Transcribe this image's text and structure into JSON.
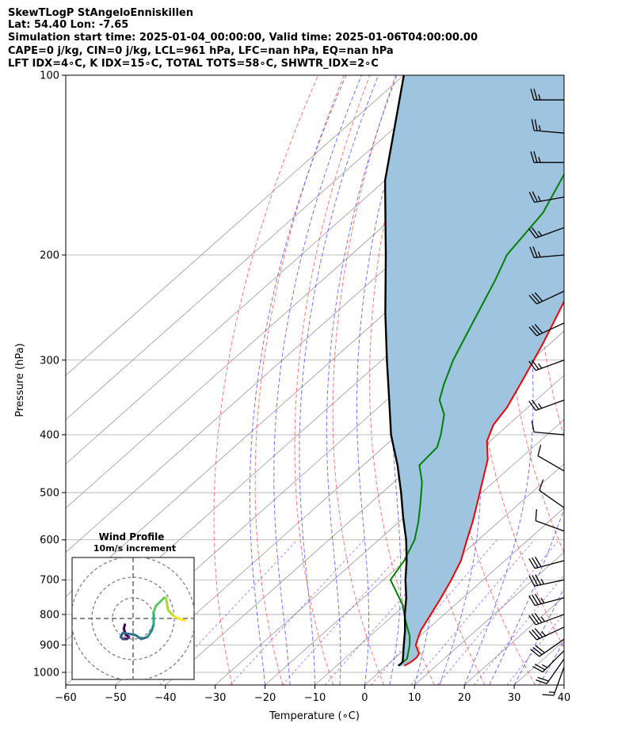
{
  "header": {
    "line1": "SkewTLogP StAngeloEnniskillen",
    "line2": "Lat: 54.40   Lon: -7.65",
    "line3": "Simulation start time: 2025-01-04_00:00:00, Valid time: 2025-01-06T04:00:00.00",
    "line4": "CAPE=0 j/kg, CIN=0 j/kg, LCL=961 hPa, LFC=nan hPa, EQ=nan hPa",
    "line5": "LFT IDX=4∘C, K IDX=15∘C, TOTAL TOTS=58∘C, SHWTR_IDX=2∘C"
  },
  "colors": {
    "temperature": "#ee0000",
    "dewpoint": "#008000",
    "parcel": "#000000",
    "cape_fill": "#9ec4df",
    "dry_adiabat": "#ff5555",
    "moist_adiabat": "#4444ff",
    "mixing_ratio": "#8a2be2",
    "isotherm": "#999999"
  },
  "chart_data": {
    "type": "line",
    "xlabel": "Temperature (∘C)",
    "ylabel": "Pressure (hPa)",
    "xlim": [
      -60,
      40
    ],
    "ylim": [
      1050,
      100
    ],
    "x_ticks": [
      -60,
      -50,
      -40,
      -30,
      -20,
      -10,
      0,
      10,
      20,
      30,
      40
    ],
    "x_tick_labels": [
      "−60",
      "−50",
      "−40",
      "−30",
      "−20",
      "−10",
      "0",
      "10",
      "20",
      "30",
      "40"
    ],
    "y_ticks": [
      1000,
      900,
      800,
      700,
      600,
      500,
      400,
      300,
      200,
      100
    ],
    "y_tick_labels": [
      "1000",
      "900",
      "800",
      "700",
      "600",
      "500",
      "400",
      "300",
      "200",
      "100"
    ],
    "skew_deg_per_decade": 135,
    "series": [
      {
        "name": "Temperature",
        "pressure": [
          975,
          960,
          945,
          930,
          900,
          870,
          850,
          800,
          750,
          700,
          650,
          600,
          560,
          520,
          480,
          440,
          410,
          385,
          360,
          320,
          280,
          240,
          200,
          180,
          160,
          140,
          120,
          100
        ],
        "temp": [
          3.6,
          4.1,
          4.2,
          3.8,
          1.2,
          -0.2,
          -1.1,
          -2.7,
          -4.4,
          -6.4,
          -8.8,
          -12.3,
          -15.2,
          -18.6,
          -22.3,
          -26.3,
          -30.6,
          -33.0,
          -34.2,
          -37.6,
          -41.6,
          -46.6,
          -53.6,
          -57.8,
          -62.0,
          -66.2,
          -69.4,
          -72.7
        ]
      },
      {
        "name": "Dewpoint",
        "pressure": [
          975,
          950,
          900,
          870,
          820,
          770,
          700,
          650,
          600,
          560,
          520,
          480,
          450,
          420,
          400,
          370,
          350,
          330,
          300,
          260,
          220,
          200,
          170,
          140,
          100
        ],
        "dewpt": [
          2.3,
          2.6,
          0.0,
          -2.0,
          -6.3,
          -10.6,
          -18.6,
          -20.2,
          -22.8,
          -26.1,
          -30.0,
          -34.4,
          -38.7,
          -39.2,
          -41.3,
          -45.2,
          -49.4,
          -52.0,
          -55.7,
          -60.2,
          -65.4,
          -68.7,
          -71.0,
          -76.8,
          -84.1
        ]
      },
      {
        "name": "Parcel",
        "pressure": [
          975,
          961,
          940,
          900,
          850,
          800,
          750,
          700,
          650,
          600,
          550,
          500,
          450,
          400,
          350,
          300,
          250,
          200,
          150,
          120,
          100
        ],
        "temp": [
          2.5,
          2.4,
          1.2,
          -1.2,
          -4.3,
          -7.9,
          -11.4,
          -15.6,
          -19.7,
          -24.5,
          -30.2,
          -36.2,
          -43.1,
          -51.3,
          -59.5,
          -69.0,
          -80.0,
          -93.0,
          -110.0,
          -121.0,
          -130.0
        ]
      }
    ],
    "wind_barbs": [
      {
        "p": 980,
        "speed_kt": 15,
        "dir_deg": 200
      },
      {
        "p": 950,
        "speed_kt": 20,
        "dir_deg": 215
      },
      {
        "p": 920,
        "speed_kt": 25,
        "dir_deg": 225
      },
      {
        "p": 880,
        "speed_kt": 30,
        "dir_deg": 235
      },
      {
        "p": 840,
        "speed_kt": 35,
        "dir_deg": 245
      },
      {
        "p": 800,
        "speed_kt": 35,
        "dir_deg": 250
      },
      {
        "p": 750,
        "speed_kt": 35,
        "dir_deg": 255
      },
      {
        "p": 700,
        "speed_kt": 35,
        "dir_deg": 258
      },
      {
        "p": 650,
        "speed_kt": 30,
        "dir_deg": 255
      },
      {
        "p": 580,
        "speed_kt": 10,
        "dir_deg": 290
      },
      {
        "p": 530,
        "speed_kt": 10,
        "dir_deg": 305
      },
      {
        "p": 460,
        "speed_kt": 10,
        "dir_deg": 300
      },
      {
        "p": 400,
        "speed_kt": 10,
        "dir_deg": 275
      },
      {
        "p": 350,
        "speed_kt": 25,
        "dir_deg": 250
      },
      {
        "p": 300,
        "speed_kt": 25,
        "dir_deg": 250
      },
      {
        "p": 260,
        "speed_kt": 30,
        "dir_deg": 245
      },
      {
        "p": 230,
        "speed_kt": 30,
        "dir_deg": 245
      },
      {
        "p": 200,
        "speed_kt": 25,
        "dir_deg": 265
      },
      {
        "p": 180,
        "speed_kt": 25,
        "dir_deg": 250
      },
      {
        "p": 160,
        "speed_kt": 25,
        "dir_deg": 260
      },
      {
        "p": 140,
        "speed_kt": 25,
        "dir_deg": 270
      },
      {
        "p": 125,
        "speed_kt": 25,
        "dir_deg": 275
      },
      {
        "p": 110,
        "speed_kt": 25,
        "dir_deg": 270
      }
    ],
    "hodograph": {
      "title": "Wind Profile",
      "subtitle": "10m/s increment",
      "rings_ms": [
        10,
        20,
        30
      ],
      "u_ms": [
        -4,
        -4.5,
        -3.5,
        -2,
        -3,
        -5,
        -6,
        -5,
        1,
        4,
        7,
        9,
        10,
        10,
        10,
        11,
        15,
        16,
        17,
        20,
        22,
        25
      ],
      "v_ms": [
        -3,
        -5,
        -8,
        -9,
        -10,
        -10,
        -9,
        -7,
        -8,
        -10,
        -9,
        -6,
        -3,
        0,
        3,
        6,
        10,
        10,
        4,
        1,
        0,
        -1
      ]
    }
  }
}
